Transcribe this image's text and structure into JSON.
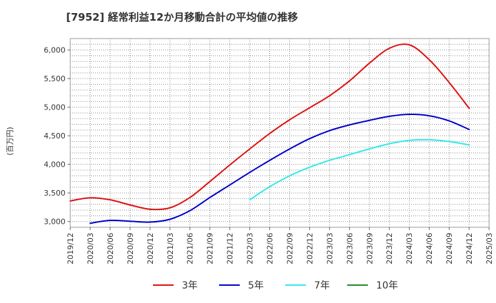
{
  "chart_data": {
    "type": "line",
    "title": "[7952]  経常利益12か月移動合計の平均値の推移",
    "ylabel": "(百万円)",
    "xlabel": "",
    "ylim": [
      2900,
      6200
    ],
    "yticks": [
      3000,
      3500,
      4000,
      4500,
      5000,
      5500,
      6000
    ],
    "ytick_labels": [
      "3,000",
      "3,500",
      "4,000",
      "4,500",
      "5,000",
      "5,500",
      "6,000"
    ],
    "x_ticks": [
      "2019/12",
      "2020/03",
      "2020/06",
      "2020/09",
      "2020/12",
      "2021/03",
      "2021/06",
      "2021/09",
      "2021/12",
      "2022/03",
      "2022/06",
      "2022/09",
      "2022/12",
      "2023/03",
      "2023/06",
      "2023/09",
      "2023/12",
      "2024/03",
      "2024/06",
      "2024/09",
      "2024/12",
      "2025/03"
    ],
    "grid": true,
    "legend_position": "bottom",
    "series": [
      {
        "name": "3年",
        "color": "#dd1111",
        "points": [
          [
            "2019/12",
            3360
          ],
          [
            "2020/03",
            3415
          ],
          [
            "2020/06",
            3380
          ],
          [
            "2020/09",
            3290
          ],
          [
            "2020/12",
            3215
          ],
          [
            "2021/03",
            3240
          ],
          [
            "2021/06",
            3420
          ],
          [
            "2021/09",
            3700
          ],
          [
            "2021/12",
            3990
          ],
          [
            "2022/03",
            4270
          ],
          [
            "2022/06",
            4540
          ],
          [
            "2022/09",
            4780
          ],
          [
            "2022/12",
            4990
          ],
          [
            "2023/03",
            5200
          ],
          [
            "2023/06",
            5460
          ],
          [
            "2023/09",
            5770
          ],
          [
            "2023/12",
            6030
          ],
          [
            "2024/03",
            6090
          ],
          [
            "2024/06",
            5830
          ],
          [
            "2024/09",
            5430
          ],
          [
            "2024/12",
            4980
          ]
        ]
      },
      {
        "name": "5年",
        "color": "#0000cc",
        "points": [
          [
            "2020/03",
            2970
          ],
          [
            "2020/06",
            3020
          ],
          [
            "2020/09",
            3005
          ],
          [
            "2020/12",
            2990
          ],
          [
            "2021/03",
            3040
          ],
          [
            "2021/06",
            3190
          ],
          [
            "2021/09",
            3420
          ],
          [
            "2021/12",
            3640
          ],
          [
            "2022/03",
            3860
          ],
          [
            "2022/06",
            4070
          ],
          [
            "2022/09",
            4270
          ],
          [
            "2022/12",
            4450
          ],
          [
            "2023/03",
            4590
          ],
          [
            "2023/06",
            4690
          ],
          [
            "2023/09",
            4770
          ],
          [
            "2023/12",
            4840
          ],
          [
            "2024/03",
            4875
          ],
          [
            "2024/06",
            4850
          ],
          [
            "2024/09",
            4760
          ],
          [
            "2024/12",
            4610
          ]
        ]
      },
      {
        "name": "7年",
        "color": "#33e8e8",
        "points": [
          [
            "2022/03",
            3380
          ],
          [
            "2022/06",
            3610
          ],
          [
            "2022/09",
            3800
          ],
          [
            "2022/12",
            3950
          ],
          [
            "2023/03",
            4070
          ],
          [
            "2023/06",
            4170
          ],
          [
            "2023/09",
            4270
          ],
          [
            "2023/12",
            4360
          ],
          [
            "2024/03",
            4420
          ],
          [
            "2024/06",
            4430
          ],
          [
            "2024/09",
            4400
          ],
          [
            "2024/12",
            4340
          ]
        ]
      },
      {
        "name": "10年",
        "color": "#228822",
        "points": []
      }
    ]
  }
}
